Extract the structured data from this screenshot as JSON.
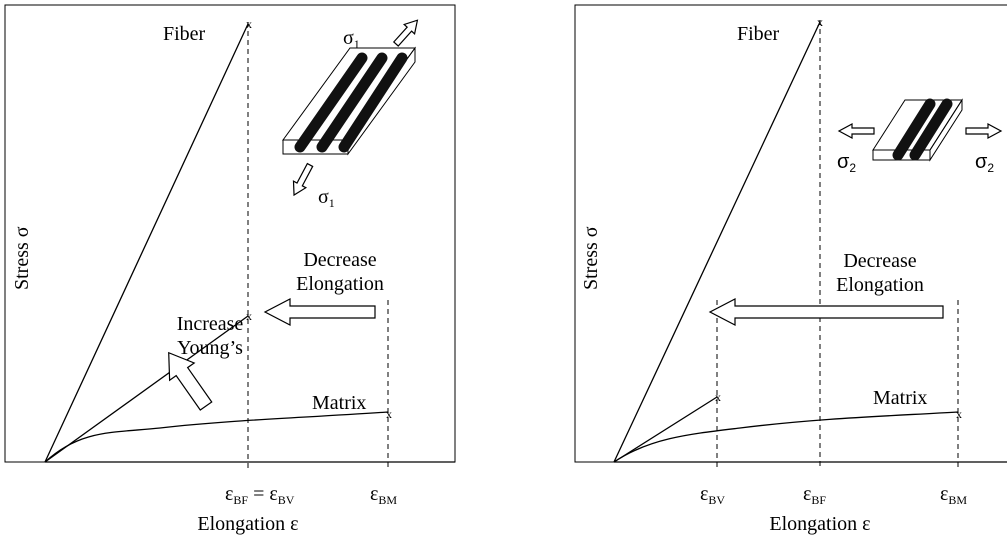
{
  "panels": [
    {
      "y_axis_label": "Stress σ",
      "x_axis_label": "Elongation ε",
      "fiber_label": "Fiber",
      "matrix_label": "Matrix",
      "break_mark": "x",
      "decrease_label": [
        "Decrease",
        "Elongation"
      ],
      "increase_label": [
        "Increase",
        "Young’s"
      ],
      "ticks": [
        [
          "ε",
          "BF",
          " = ε",
          "BV"
        ],
        [
          "ε",
          "BM"
        ]
      ],
      "load_label": [
        "σ",
        "1"
      ]
    },
    {
      "y_axis_label": "Stress σ",
      "x_axis_label": "Elongation ε",
      "fiber_label": "Fiber",
      "matrix_label": "Matrix",
      "break_mark": "x",
      "decrease_label": [
        "Decrease",
        "Elongation"
      ],
      "ticks": [
        [
          "ε",
          "BV"
        ],
        [
          "ε",
          "BF"
        ],
        [
          "ε",
          "BM"
        ]
      ],
      "load_label": [
        "σ",
        "2"
      ]
    }
  ]
}
